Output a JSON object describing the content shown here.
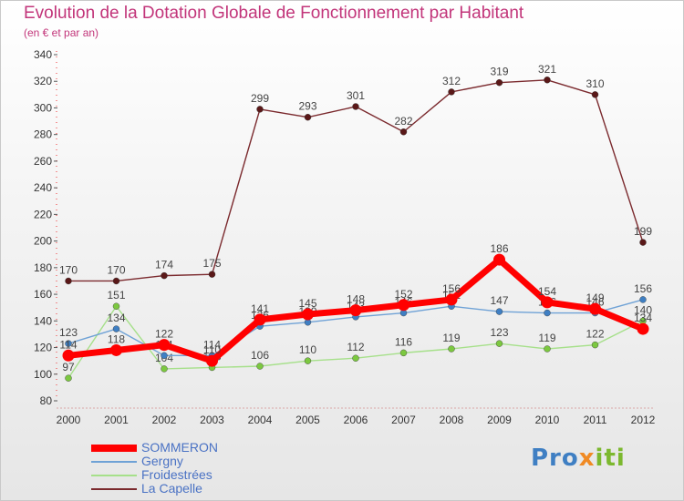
{
  "title": "Evolution de la Dotation Globale de Fonctionnement par Habitant",
  "subtitle": "(en € et par an)",
  "logo": {
    "part1": "Pro",
    "part2": "x",
    "part3": "iti"
  },
  "chart_data": {
    "type": "line",
    "title": "Evolution de la Dotation Globale de Fonctionnement par Habitant",
    "subtitle": "(en € et par an)",
    "xlabel": "",
    "ylabel": "",
    "ylim": [
      80,
      340
    ],
    "yticks": [
      80,
      100,
      120,
      140,
      160,
      180,
      200,
      220,
      240,
      260,
      280,
      300,
      320,
      340
    ],
    "grid": false,
    "legend_position": "bottom-left",
    "categories": [
      "2000",
      "2001",
      "2002",
      "2003",
      "2004",
      "2005",
      "2006",
      "2007",
      "2008",
      "2009",
      "2010",
      "2011",
      "2012"
    ],
    "series": [
      {
        "name": "La Capelle",
        "color": "#7b2a2e",
        "point_color": "#5a1818",
        "values": [
          170,
          170,
          174,
          175,
          299,
          293,
          301,
          282,
          312,
          319,
          321,
          310,
          199
        ]
      },
      {
        "name": "Froidestrées",
        "color": "#a6e08a",
        "point_color": "#7cc840",
        "values": [
          97,
          151,
          104,
          105,
          106,
          110,
          112,
          116,
          119,
          123,
          119,
          122,
          140
        ]
      },
      {
        "name": "Gergny",
        "color": "#6fa2d6",
        "point_color": "#3f7fc3",
        "values": [
          123,
          134,
          114,
          114,
          136,
          139,
          143,
          146,
          151,
          147,
          146,
          146,
          156
        ]
      },
      {
        "name": "SOMMERON",
        "color": "#ff0000",
        "point_color": "#ff0000",
        "values": [
          114,
          118,
          122,
          110,
          141,
          145,
          148,
          152,
          156,
          186,
          154,
          149,
          134
        ]
      }
    ],
    "legend": [
      {
        "name": "SOMMERON",
        "color": "#ff0000"
      },
      {
        "name": "Gergny",
        "color": "#6fa2d6"
      },
      {
        "name": "Froidestrées",
        "color": "#a6e08a"
      },
      {
        "name": "La Capelle",
        "color": "#7b2a2e"
      }
    ]
  }
}
